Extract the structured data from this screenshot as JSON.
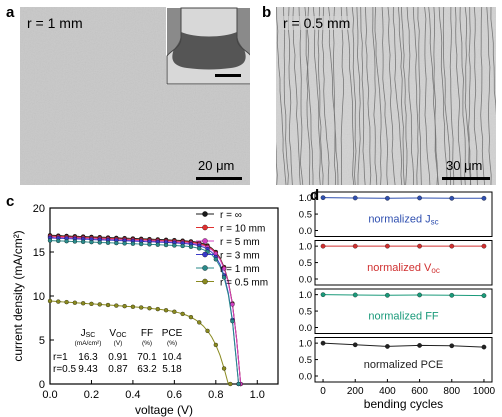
{
  "panel_a": {
    "letter": "a",
    "radius_label": "r = 1 mm",
    "scalebar_label": "20 μm"
  },
  "panel_b": {
    "letter": "b",
    "radius_label": "r = 0.5 mm",
    "scalebar_label": "30 μm"
  },
  "panel_c": {
    "letter": "c",
    "legend_entries": [
      {
        "text": "r = ∞",
        "color": "#1a1a1a"
      },
      {
        "text": "r = 10 mm",
        "color": "#e03030"
      },
      {
        "text": "r = 5 mm",
        "color": "#d040c0"
      },
      {
        "text": "r = 3 mm",
        "color": "#3a3ac8"
      },
      {
        "text": "r = 1 mm",
        "color": "#2a8a8a"
      },
      {
        "text": "r = 0.5 mm",
        "color": "#8a8a20"
      }
    ],
    "table": {
      "headers": [
        {
          "main": "J",
          "sub": "SC",
          "unit": "(mA/cm²)"
        },
        {
          "main": "V",
          "sub": "OC",
          "unit": "(V)"
        },
        {
          "main": "FF",
          "sub": "",
          "unit": "(%)"
        },
        {
          "main": "PCE",
          "sub": "",
          "unit": "(%)"
        }
      ],
      "rows": [
        {
          "label": "r=1",
          "values": [
            "16.3",
            "0.91",
            "70.1",
            "10.4"
          ]
        },
        {
          "label": "r=0.5",
          "values": [
            "9.43",
            "0.87",
            "63.2",
            "5.18"
          ]
        }
      ]
    }
  },
  "panel_d": {
    "letter": "d",
    "subplots": [
      {
        "label_main": "normalized J",
        "label_sub": "sc",
        "color": "#3050b0"
      },
      {
        "label_main": "normalized V",
        "label_sub": "oc",
        "color": "#d03030"
      },
      {
        "label_main": "normalized FF",
        "label_sub": "",
        "color": "#1a9a7a"
      },
      {
        "label_main": "normalized PCE",
        "label_sub": "",
        "color": "#222222"
      }
    ]
  },
  "chart_data": [
    {
      "type": "line",
      "xlabel": "voltage (V)",
      "ylabel": "current density (mA/cm²)",
      "xlim": [
        0.0,
        1.1
      ],
      "ylim": [
        0,
        20
      ],
      "xticks": [
        "0.0",
        "0.2",
        "0.4",
        "0.6",
        "0.8",
        "1.0"
      ],
      "yticks": [
        "0",
        "5",
        "10",
        "15",
        "20"
      ],
      "legend_position": "top-right",
      "series": [
        {
          "name": "r = ∞",
          "color": "#1a1a1a",
          "jsc": 16.9,
          "voc": 0.92
        },
        {
          "name": "r = 10 mm",
          "color": "#e03030",
          "jsc": 16.8,
          "voc": 0.92
        },
        {
          "name": "r = 5 mm",
          "color": "#d040c0",
          "jsc": 16.7,
          "voc": 0.92
        },
        {
          "name": "r = 3 mm",
          "color": "#3a3ac8",
          "jsc": 16.6,
          "voc": 0.91
        },
        {
          "name": "r = 1 mm",
          "color": "#2a8a8a",
          "jsc": 16.3,
          "voc": 0.91
        },
        {
          "name": "r = 0.5 mm",
          "color": "#8a8a20",
          "jsc": 9.43,
          "voc": 0.87
        }
      ]
    },
    {
      "type": "line",
      "xlabel": "bending cycles",
      "ylabel": "",
      "x": [
        0,
        200,
        400,
        600,
        800,
        1000
      ],
      "xticks": [
        "0",
        "200",
        "400",
        "600",
        "800",
        "1000"
      ],
      "ylim": [
        0.0,
        1.0
      ],
      "yticks": [
        "0.0",
        "0.5",
        "1.0"
      ],
      "series": [
        {
          "name": "normalized Jsc",
          "color": "#3050b0",
          "values": [
            1.0,
            0.99,
            0.98,
            0.99,
            0.98,
            0.98
          ]
        },
        {
          "name": "normalized Voc",
          "color": "#d03030",
          "values": [
            1.0,
            1.0,
            1.0,
            1.0,
            1.0,
            1.0
          ]
        },
        {
          "name": "normalized FF",
          "color": "#1a9a7a",
          "values": [
            1.0,
            0.99,
            0.98,
            0.99,
            0.98,
            0.97
          ]
        },
        {
          "name": "normalized PCE",
          "color": "#222222",
          "values": [
            1.0,
            0.95,
            0.9,
            0.93,
            0.92,
            0.88
          ]
        }
      ]
    }
  ]
}
